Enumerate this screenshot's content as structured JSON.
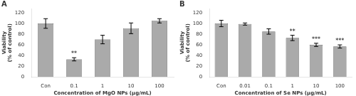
{
  "chart_data": [
    {
      "type": "bar",
      "title": "A",
      "categories": [
        "Con",
        "0.1",
        "1",
        "10",
        "100"
      ],
      "values": [
        100,
        33,
        70,
        91,
        105
      ],
      "errors": [
        9,
        3,
        8,
        10,
        4
      ],
      "annotations": [
        {
          "category": "0.1",
          "text": "**"
        }
      ],
      "xlabel": "Concentration of MgO NPs (µg/mL)",
      "ylabel": "Viability\n(% of control)",
      "ylim": [
        0,
        128
      ],
      "yticks": [
        0,
        20,
        40,
        60,
        80,
        100,
        120
      ],
      "color": "#aaaaaa",
      "grid": false
    },
    {
      "type": "bar",
      "title": "B",
      "categories": [
        "Con",
        "0.01",
        "0.1",
        "1",
        "10",
        "100"
      ],
      "values": [
        100,
        99,
        85,
        73,
        60,
        57
      ],
      "errors": [
        6,
        2,
        5,
        5,
        3,
        3
      ],
      "annotations": [
        {
          "category": "1",
          "text": "**"
        },
        {
          "category": "10",
          "text": "***"
        },
        {
          "category": "100",
          "text": "***"
        }
      ],
      "xlabel": "Concentration of Se NPs (µg/mL)",
      "ylabel": "Viability\n(% of control)",
      "ylim": [
        0,
        128
      ],
      "yticks": [
        0,
        20,
        40,
        60,
        80,
        100,
        120
      ],
      "color": "#aaaaaa",
      "grid": false
    }
  ]
}
